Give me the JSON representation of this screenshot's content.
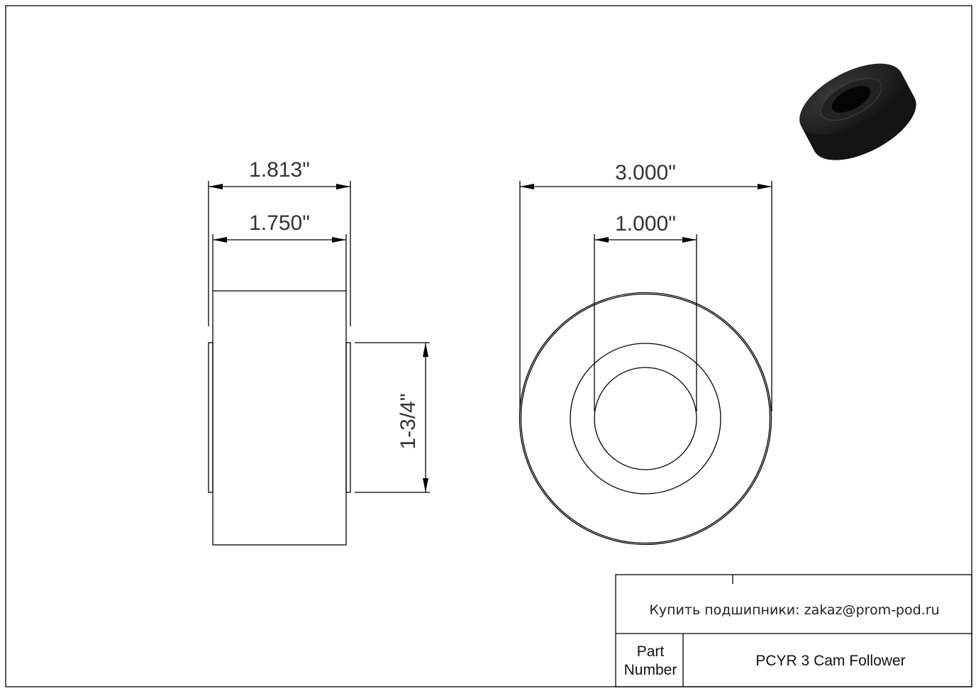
{
  "dimensions": {
    "side_outer_width": "1.813\"",
    "side_inner_width": "1.750\"",
    "side_height": "1-3/4\"",
    "outer_diameter": "3.000\"",
    "bore_diameter": "1.000\""
  },
  "title_block": {
    "contact": "Купить подшипники: zakaz@prom-pod.ru",
    "part_number_label_line1": "Part",
    "part_number_label_line2": "Number",
    "part_number_value": "PCYR 3 Cam Follower"
  },
  "colors": {
    "line": "#000000",
    "render": "#1c1c1c"
  }
}
